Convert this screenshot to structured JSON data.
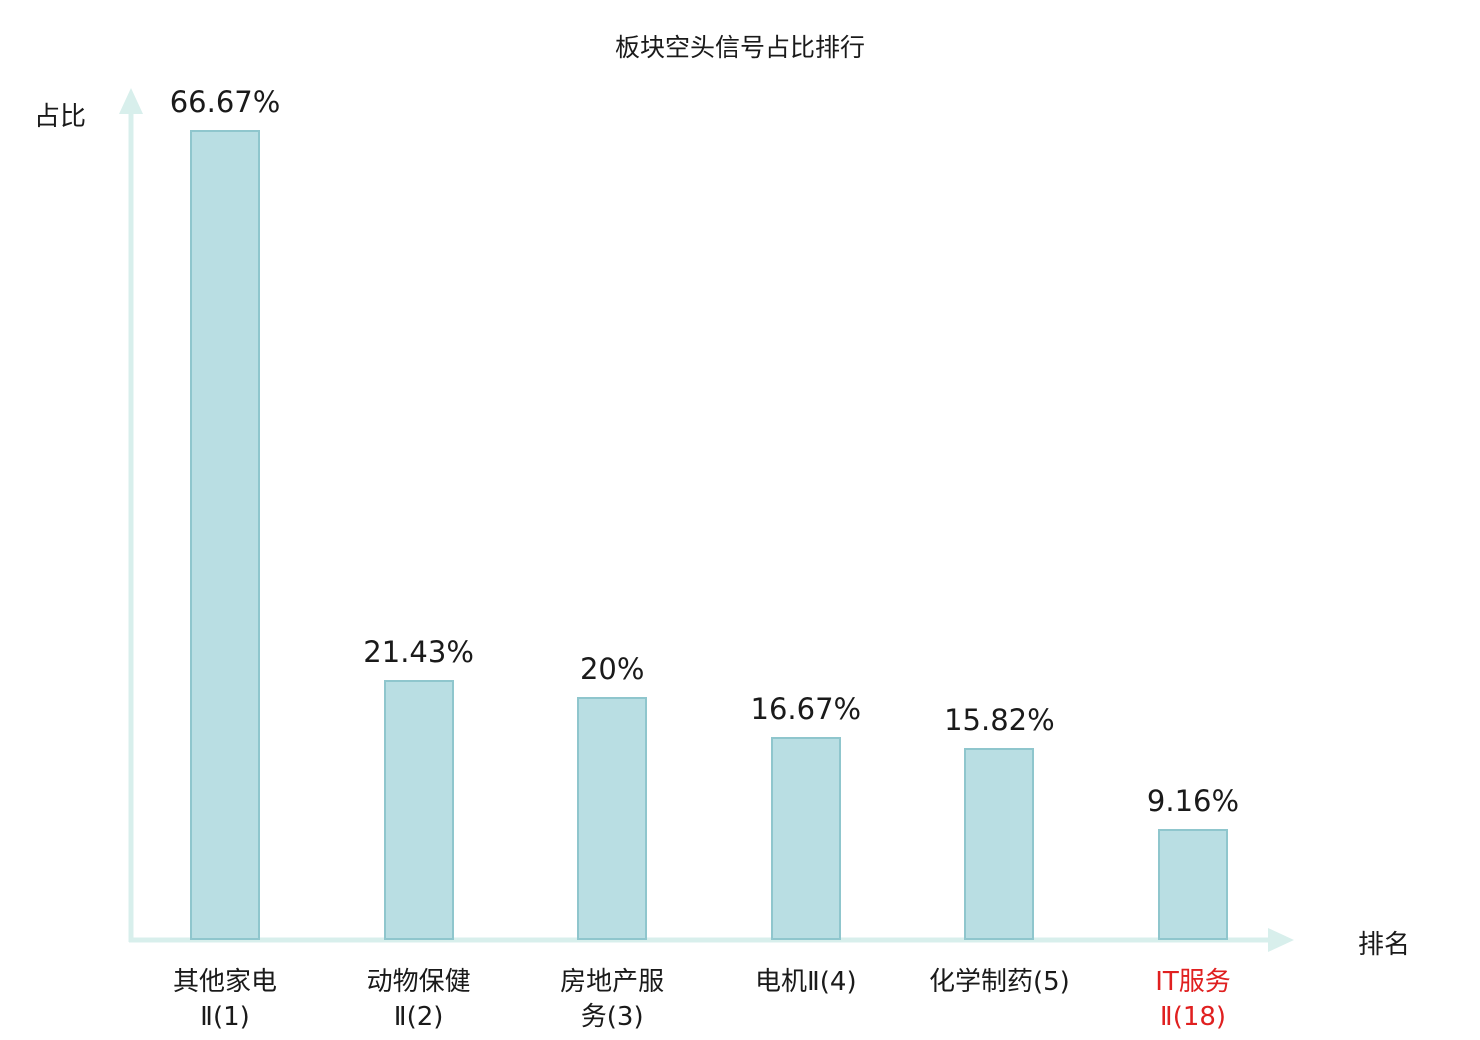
{
  "chart_data": {
    "type": "bar",
    "title": "板块空头信号占比排行",
    "xlabel": "排名",
    "ylabel": "占比",
    "categories": [
      "其他家电Ⅱ(1)",
      "动物保健Ⅱ(2)",
      "房地产服务(3)",
      "电机Ⅱ(4)",
      "化学制药(5)",
      "IT服务Ⅱ(18)"
    ],
    "category_lines": [
      [
        "其他家电",
        "Ⅱ(1)"
      ],
      [
        "动物保健",
        "Ⅱ(2)"
      ],
      [
        "房地产服",
        "务(3)"
      ],
      [
        "电机Ⅱ(4)"
      ],
      [
        "化学制药(5)"
      ],
      [
        "IT服务",
        "Ⅱ(18)"
      ]
    ],
    "values": [
      66.67,
      21.43,
      20,
      16.67,
      15.82,
      9.16
    ],
    "value_labels": [
      "66.67%",
      "21.43%",
      "20%",
      "16.67%",
      "15.82%",
      "9.16%"
    ],
    "highlight_index": 5,
    "highlight_color": "#e02020",
    "bar_fill": "#b9dee3",
    "bar_border": "#8fc6cd",
    "axis_color": "#d8efec",
    "text_color": "#1a1a1a",
    "ylim": [
      0,
      70
    ],
    "grid": false,
    "legend": false
  }
}
